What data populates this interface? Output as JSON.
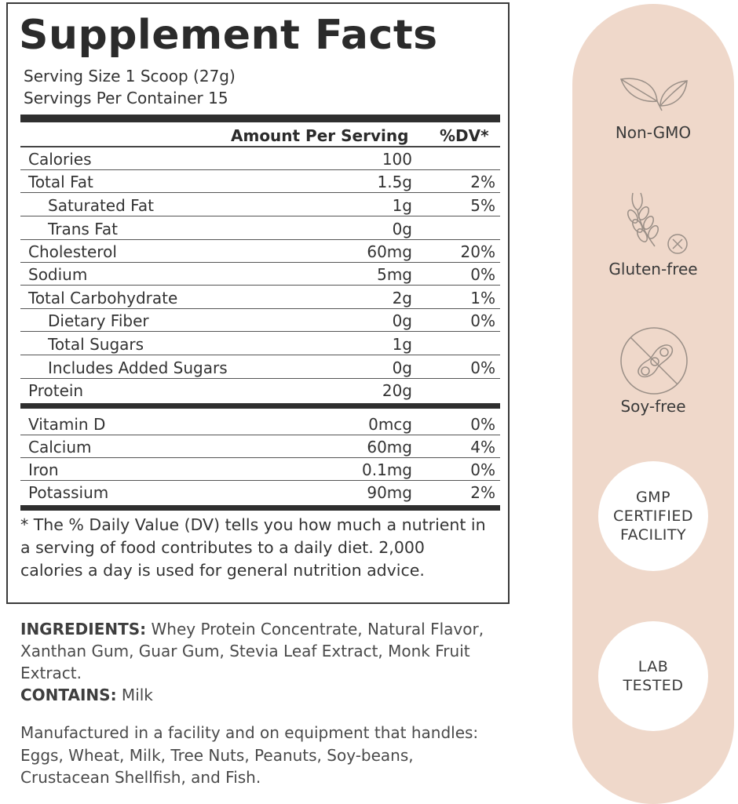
{
  "facts": {
    "title": "Supplement Facts",
    "serving_size": "Serving Size 1 Scoop (27g)",
    "servings_per_container": "Servings Per Container 15",
    "header_amount": "Amount Per Serving",
    "header_dv": "%DV*",
    "nutrients": [
      {
        "name": "Calories",
        "amount": "100",
        "dv": ""
      },
      {
        "name": "Total Fat",
        "amount": "1.5g",
        "dv": "2%"
      },
      {
        "name": "Saturated Fat",
        "amount": "1g",
        "dv": "5%"
      },
      {
        "name": "Trans Fat",
        "amount": "0g",
        "dv": ""
      },
      {
        "name": "Cholesterol",
        "amount": "60mg",
        "dv": "20%"
      },
      {
        "name": "Sodium",
        "amount": "5mg",
        "dv": "0%"
      },
      {
        "name": "Total Carbohydrate",
        "amount": "2g",
        "dv": "1%"
      },
      {
        "name": "Dietary Fiber",
        "amount": "0g",
        "dv": "0%"
      },
      {
        "name": "Total Sugars",
        "amount": "1g",
        "dv": ""
      },
      {
        "name": "Includes Added Sugars",
        "amount": "0g",
        "dv": "0%"
      },
      {
        "name": "Protein",
        "amount": "20g",
        "dv": ""
      }
    ],
    "vitamins": [
      {
        "name": "Vitamin D",
        "amount": "0mcg",
        "dv": "0%"
      },
      {
        "name": "Calcium",
        "amount": "60mg",
        "dv": "4%"
      },
      {
        "name": "Iron",
        "amount": "0.1mg",
        "dv": "0%"
      },
      {
        "name": "Potassium",
        "amount": "90mg",
        "dv": "2%"
      }
    ],
    "footnote": "* The % Daily Value (DV) tells you how much a nutrient in a serving of food contributes to a daily diet. 2,000 calories a day is used for general nutrition advice."
  },
  "ingredients": {
    "label": "INGREDIENTS:",
    "text": " Whey Protein Concentrate, Natural Flavor, Xanthan Gum, Guar Gum, Stevia Leaf Extract, Monk Fruit Extract.",
    "contains_label": "CONTAINS:",
    "contains_text": " Milk",
    "manufacturing": "Manufactured in a facility and on equipment that handles: Eggs, Wheat, Milk, Tree Nuts, Peanuts, Soy-beans, Crustacean Shellfish, and Fish."
  },
  "badges": {
    "pill_color": "#efd8ca",
    "non_gmo": "Non-GMO",
    "gluten_free": "Gluten-free",
    "soy_free": "Soy-free",
    "gmp": [
      "GMP",
      "CERTIFIED",
      "FACILITY"
    ],
    "lab": [
      "LAB",
      "TESTED"
    ],
    "icons": [
      "leaves-icon",
      "wheat-crossed-icon",
      "soybean-crossed-icon"
    ]
  }
}
